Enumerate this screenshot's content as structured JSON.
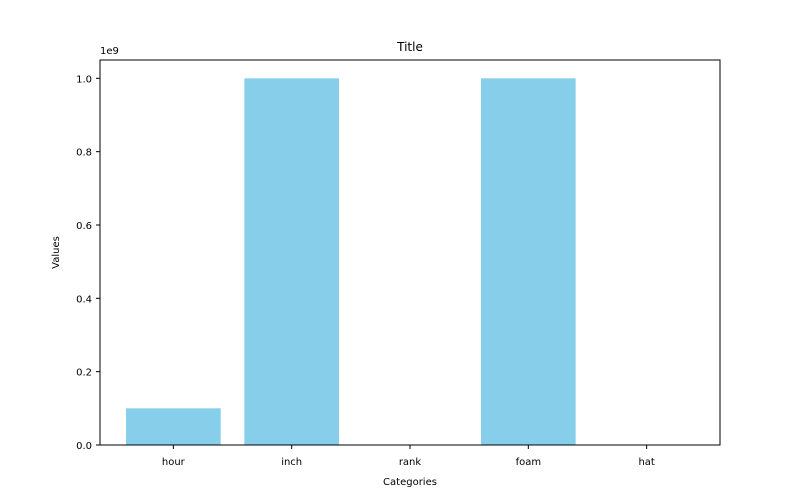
{
  "chart_data": {
    "type": "bar",
    "title": "Title",
    "xlabel": "Categories",
    "ylabel": "Values",
    "scale_label": "1e9",
    "categories": [
      "hour",
      "inch",
      "rank",
      "foam",
      "hat"
    ],
    "values": [
      100000000,
      1000000000,
      0,
      1000000000,
      0
    ],
    "ylim": [
      0,
      1050000000
    ],
    "y_ticks": [
      0,
      200000000,
      400000000,
      600000000,
      800000000,
      1000000000
    ],
    "y_tick_labels": [
      "0.0",
      "0.2",
      "0.4",
      "0.6",
      "0.8",
      "1.0"
    ],
    "bar_color": "#87ceeb",
    "grid": false,
    "legend": "none"
  }
}
